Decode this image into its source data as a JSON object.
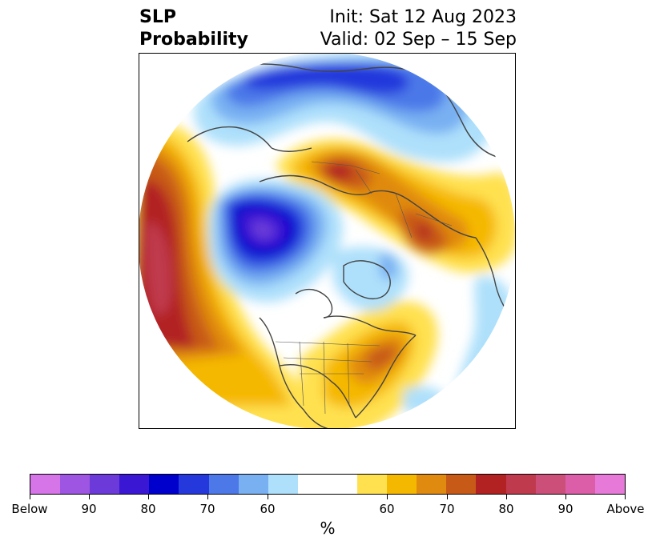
{
  "title": {
    "left_line1": "SLP",
    "left_line2": "Probability",
    "right_line1": "Init: Sat 12 Aug 2023",
    "right_line2": "Valid: 02 Sep – 15 Sep"
  },
  "colorbar": {
    "colors": [
      "#d675e8",
      "#9d55e2",
      "#6b3ad9",
      "#3a17d3",
      "#0000cc",
      "#2438dc",
      "#4c78e8",
      "#78b0f2",
      "#aee0fb",
      "#ffffff",
      "#ffffff",
      "#ffe150",
      "#f5b800",
      "#e08a10",
      "#c85a18",
      "#b22222",
      "#c03a4e",
      "#cc4f7a",
      "#dc5ea8",
      "#e77ad8"
    ],
    "tick_labels": [
      "Below",
      "90",
      "80",
      "70",
      "60",
      "60",
      "70",
      "80",
      "90",
      "Above"
    ],
    "unit": "%"
  },
  "map": {
    "projection": "north-polar-stereographic",
    "variable": "sea level pressure tercile probability",
    "regions": [
      {
        "name": "Arctic / northern Eurasia",
        "category": "below",
        "max_percent": 80
      },
      {
        "name": "Hudson Bay / Baffin region",
        "category": "below",
        "max_percent": 90
      },
      {
        "name": "North Atlantic / Greenland",
        "category": "below",
        "max_percent": 60
      },
      {
        "name": "Siberia",
        "category": "above",
        "max_percent": 80
      },
      {
        "name": "Eastern Europe / Scandinavia",
        "category": "above",
        "max_percent": 80
      },
      {
        "name": "North Pacific",
        "category": "above",
        "max_percent": 90
      },
      {
        "name": "Eastern United States",
        "category": "above",
        "max_percent": 80
      }
    ]
  }
}
